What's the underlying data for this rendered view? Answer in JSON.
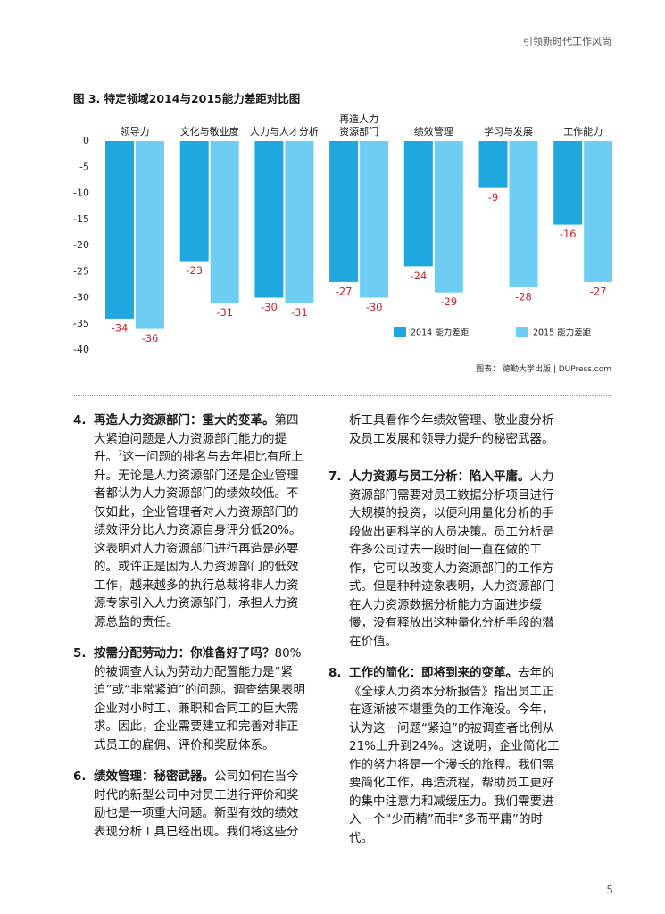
{
  "header": {
    "running_title": "引领新时代工作风尚"
  },
  "chart_data": {
    "type": "bar",
    "title": "图 3. 特定领域2014与2015能力差距对比图",
    "categories": [
      "领导力",
      "文化与敬业度",
      "人力与人才分析",
      "再造人力\n资源部门",
      "绩效管理",
      "学习与发展",
      "工作能力"
    ],
    "series": [
      {
        "name": "2014 能力差距",
        "color": "#1ea8df",
        "values": [
          -34,
          -23,
          -30,
          -27,
          -24,
          -9,
          -16
        ]
      },
      {
        "name": "2015 能力差距",
        "color": "#6dcdf2",
        "values": [
          -36,
          -31,
          -31,
          -30,
          -29,
          -28,
          -27
        ]
      }
    ],
    "ylim": [
      -40,
      0
    ],
    "yticks": [
      0,
      -5,
      -10,
      -15,
      -20,
      -25,
      -30,
      -35,
      -40
    ],
    "grid": false,
    "legend": "bottom-right",
    "label_color": "#c8262c",
    "source": "图表： 德勤大学出版 | DUPress.com"
  },
  "items": [
    {
      "number": "4.",
      "heading": "再造人力资源部门：重大的变革。",
      "text": "第四大紧迫问题是人力资源部门能力的提升。",
      "footnote": "7",
      "text2": "这一问题的排名与去年相比有所上升。无论是人力资源部门还是企业管理者都认为人力资源部门的绩效较低。不仅如此，企业管理者对人力资源部门的绩效评分比人力资源自身评分低20%。这表明对人力资源部门进行再造是必要的。或许正是因为人力资源部门的低效工作，越来越多的执行总裁将非人力资源专家引入人力资源部门，承担人力资源总监的责任。"
    },
    {
      "number": "5.",
      "heading": "按需分配劳动力：你准备好了吗？",
      "text": "80%的被调查人认为劳动力配置能力是“紧迫”或“非常紧迫”的问题。调查结果表明企业对小时工、兼职和合同工的巨大需求。因此，企业需要建立和完善对非正式员工的雇佣、评价和奖励体系。"
    },
    {
      "number": "6.",
      "heading": "绩效管理：秘密武器。",
      "text": "公司如何在当今时代的新型公司中对员工进行评价和奖励也是一项重大问题。新型有效的绩效表现分析工具已经出现。我们将这些分",
      "continuation": "析工具看作今年绩效管理、敬业度分析及员工发展和领导力提升的秘密武器。"
    },
    {
      "number": "7.",
      "heading": "人力资源与员工分析：陷入平庸。",
      "text": "人力资源部门需要对员工数据分析项目进行大规模的投资，以便利用量化分析的手段做出更科学的人员决策。员工分析是许多公司过去一段时间一直在做的工作，它可以改变人力资源部门的工作方式。但是种种迹象表明，人力资源部门在人力资源数据分析能力方面进步缓慢，没有释放出这种量化分析手段的潜在价值。"
    },
    {
      "number": "8.",
      "heading": "工作的简化：即将到来的变革。",
      "text": "去年的《全球人力资本分析报告》指出员工正在逐渐被不堪重负的工作淹没。今年，认为这一问题“紧迫”的被调查者比例从21%上升到24%。这说明，企业简化工作的努力将是一个漫长的旅程。我们需要简化工作，再造流程，帮助员工更好的集中注意力和减缓压力。我们需要进入一个“少而精”而非“多而平庸”的时代。"
    }
  ],
  "page_number": "5"
}
